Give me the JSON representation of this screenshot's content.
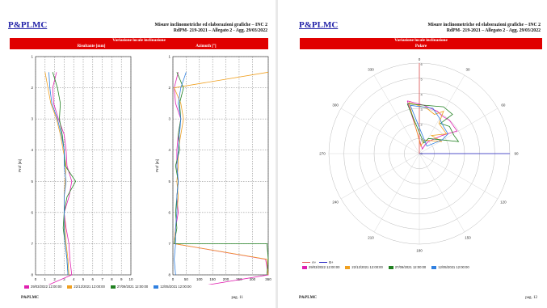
{
  "left_page": {
    "logo": "P&PLMC",
    "header_line1": "Misure inclinometriche ed elaborazioni grafiche – INC 2",
    "header_line2": "RdPM- 219-2021 – Allegato 2 - Agg. 29/03/2022",
    "section_title": "Variazione locale inclinazione",
    "subtitle_left": "Risultante [mm]",
    "subtitle_right": "Azimuth [°]",
    "footer_logo": "P&PLMC",
    "page_number": "pag. 11"
  },
  "right_page": {
    "logo": "P&PLMC",
    "header_line1": "Misure inclinometriche ed elaborazioni grafiche – INC 2",
    "header_line2": "RdPM- 219-2021 – Allegato 2 - Agg. 29/03/2022",
    "section_title": "Variazione locale inclinazione",
    "section_subtitle": "Polare",
    "footer_logo": "P&PLMC",
    "page_number": "pag. 12",
    "axis_legend_a": "A+",
    "axis_legend_b": "B+"
  },
  "legend": [
    {
      "label": "29/03/2022 12:00:00",
      "color": "#e020b0"
    },
    {
      "label": "22/12/2021 12:00:00",
      "color": "#f0a020"
    },
    {
      "label": "27/09/2021 12:00:00",
      "color": "#208020"
    },
    {
      "label": "12/05/2021 12:00:00",
      "color": "#3080e0"
    }
  ],
  "chart_data": [
    {
      "type": "line",
      "title": "Risultante [mm]",
      "xlabel": "",
      "ylabel": "Prof [m]",
      "xlim": [
        0,
        10
      ],
      "ylim": [
        1,
        8
      ],
      "x_ticks": [
        0,
        1,
        2,
        3,
        4,
        5,
        6,
        7,
        8,
        9,
        10
      ],
      "y_ticks": [
        1,
        2,
        3,
        4,
        5,
        6,
        7,
        8
      ],
      "grid": true,
      "series": [
        {
          "name": "29/03/2022 12:00:00",
          "color": "#e020b0",
          "points": [
            [
              2.2,
              1.5
            ],
            [
              1.8,
              2
            ],
            [
              1.9,
              2.5
            ],
            [
              2.4,
              3
            ],
            [
              3,
              3.5
            ],
            [
              3.2,
              4
            ],
            [
              3.3,
              4.5
            ],
            [
              3.8,
              5
            ],
            [
              3.5,
              5.5
            ],
            [
              3,
              6
            ],
            [
              3.2,
              6.5
            ],
            [
              3.5,
              7
            ],
            [
              3.6,
              7.5
            ],
            [
              3.8,
              8
            ],
            [
              0,
              8.5
            ]
          ]
        },
        {
          "name": "22/12/2021 12:00:00",
          "color": "#f0a020",
          "points": [
            [
              1,
              1.5
            ],
            [
              1.3,
              2
            ],
            [
              1.6,
              2.5
            ],
            [
              2.2,
              3
            ],
            [
              2.6,
              3.5
            ],
            [
              2.9,
              4
            ],
            [
              3.2,
              4.5
            ],
            [
              3.1,
              5
            ],
            [
              3,
              5.5
            ],
            [
              3,
              6
            ],
            [
              3.1,
              6.5
            ],
            [
              3.2,
              7
            ],
            [
              3.4,
              7.5
            ],
            [
              3.5,
              8
            ]
          ]
        },
        {
          "name": "27/09/2021 12:00:00",
          "color": "#208020",
          "points": [
            [
              1.8,
              1.5
            ],
            [
              2.3,
              2
            ],
            [
              2.6,
              2.5
            ],
            [
              2.5,
              3
            ],
            [
              2.8,
              3.5
            ],
            [
              3,
              4
            ],
            [
              3.1,
              4.5
            ],
            [
              4.2,
              5
            ],
            [
              3.3,
              5.5
            ],
            [
              3,
              6
            ],
            [
              2.9,
              6.5
            ],
            [
              3.1,
              7
            ],
            [
              3.3,
              7.5
            ],
            [
              3.4,
              8
            ]
          ]
        },
        {
          "name": "12/05/2021 12:00:00",
          "color": "#3080e0",
          "points": [
            [
              1.4,
              1.5
            ],
            [
              1.5,
              2
            ],
            [
              1.7,
              2.5
            ],
            [
              2.3,
              3
            ],
            [
              2.7,
              3.5
            ],
            [
              3,
              4
            ],
            [
              3,
              4.5
            ],
            [
              3.2,
              5
            ],
            [
              3,
              5.5
            ],
            [
              3,
              6
            ],
            [
              3,
              6.5
            ],
            [
              3.1,
              7
            ],
            [
              3.3,
              7.5
            ],
            [
              3.4,
              8
            ]
          ]
        }
      ]
    },
    {
      "type": "line",
      "title": "Azimuth [°]",
      "xlabel": "",
      "ylabel": "Prof [m]",
      "xlim": [
        0,
        360
      ],
      "ylim": [
        1,
        8
      ],
      "x_ticks": [
        0,
        50,
        100,
        150,
        200,
        250,
        300,
        360
      ],
      "y_ticks": [
        1,
        2,
        3,
        4,
        5,
        6,
        7,
        8
      ],
      "grid": true,
      "series": [
        {
          "name": "29/03/2022 12:00:00",
          "color": "#e020b0",
          "points": [
            [
              20,
              1.5
            ],
            [
              5,
              2
            ],
            [
              10,
              2.5
            ],
            [
              30,
              3
            ],
            [
              20,
              3.5
            ],
            [
              15,
              4
            ],
            [
              15,
              4.5
            ],
            [
              20,
              5
            ],
            [
              15,
              5.5
            ],
            [
              20,
              6
            ],
            [
              10,
              6.5
            ],
            [
              5,
              7
            ],
            [
              350,
              7.5
            ],
            [
              360,
              8
            ],
            [
              5,
              8.5
            ]
          ]
        },
        {
          "name": "22/12/2021 12:00:00",
          "color": "#f0a020",
          "points": [
            [
              360,
              1.5
            ],
            [
              5,
              2
            ],
            [
              30,
              2.5
            ],
            [
              40,
              3
            ],
            [
              30,
              3.5
            ],
            [
              20,
              4
            ],
            [
              20,
              4.5
            ],
            [
              15,
              5
            ],
            [
              20,
              5.5
            ],
            [
              15,
              6
            ],
            [
              10,
              6.5
            ],
            [
              5,
              7
            ],
            [
              355,
              7.5
            ],
            [
              360,
              8
            ]
          ]
        },
        {
          "name": "27/09/2021 12:00:00",
          "color": "#208020",
          "points": [
            [
              15,
              1.5
            ],
            [
              40,
              2
            ],
            [
              25,
              2.5
            ],
            [
              30,
              3
            ],
            [
              20,
              3.5
            ],
            [
              25,
              4
            ],
            [
              10,
              4.5
            ],
            [
              20,
              5
            ],
            [
              15,
              5.5
            ],
            [
              10,
              6
            ],
            [
              15,
              6.5
            ],
            [
              5,
              7
            ],
            [
              355,
              7
            ],
            [
              360,
              7.5
            ],
            [
              355,
              8
            ]
          ]
        },
        {
          "name": "12/05/2021 12:00:00",
          "color": "#3080e0",
          "points": [
            [
              50,
              1.5
            ],
            [
              30,
              2
            ],
            [
              20,
              2.5
            ],
            [
              30,
              3
            ],
            [
              25,
              3.5
            ],
            [
              20,
              4
            ],
            [
              15,
              4.5
            ],
            [
              20,
              5
            ],
            [
              15,
              5.5
            ],
            [
              15,
              6
            ],
            [
              10,
              6.5
            ],
            [
              10,
              7
            ],
            [
              5,
              7.5
            ],
            [
              10,
              8
            ]
          ]
        }
      ]
    },
    {
      "type": "polar",
      "title": "Polare",
      "angle_ticks": [
        "0",
        "30",
        "60",
        "90",
        "120",
        "150",
        "180",
        "210",
        "240",
        "270",
        "300",
        "330"
      ],
      "radial_ticks": [
        0,
        1,
        2,
        3,
        4,
        5,
        6
      ],
      "rlim": [
        0,
        6
      ],
      "series": [
        {
          "name": "29/03/2022 12:00:00",
          "color": "#e020b0",
          "points_xy": [
            [
              -0.8,
              3.5
            ],
            [
              0.3,
              3.2
            ],
            [
              1.2,
              2.8
            ],
            [
              1.5,
              2.5
            ],
            [
              2,
              2.2
            ],
            [
              2.5,
              1.5
            ],
            [
              1.5,
              1.2
            ],
            [
              0.6,
              0.8
            ],
            [
              0.4,
              0.6
            ],
            [
              0.2,
              0.3
            ],
            [
              -0.8,
              3.5
            ]
          ]
        },
        {
          "name": "22/12/2021 12:00:00",
          "color": "#f0a020",
          "points_xy": [
            [
              -0.7,
              3.4
            ],
            [
              0.5,
              3
            ],
            [
              1,
              2.6
            ],
            [
              1.6,
              2.8
            ],
            [
              1.3,
              2
            ],
            [
              1.8,
              1.3
            ],
            [
              0.8,
              1.2
            ],
            [
              1.5,
              0.8
            ],
            [
              0.3,
              0.9
            ],
            [
              0.1,
              0.5
            ],
            [
              -0.7,
              3.4
            ]
          ]
        },
        {
          "name": "27/09/2021 12:00:00",
          "color": "#208020",
          "points_xy": [
            [
              -0.8,
              3.3
            ],
            [
              1.6,
              3.1
            ],
            [
              2.2,
              2.6
            ],
            [
              1.4,
              2
            ],
            [
              2,
              1.8
            ],
            [
              2.3,
              1.2
            ],
            [
              2.6,
              0.8
            ],
            [
              0.6,
              1
            ],
            [
              0.3,
              0.7
            ],
            [
              -0.8,
              3.3
            ]
          ]
        },
        {
          "name": "12/05/2021 12:00:00",
          "color": "#3080e0",
          "points_xy": [
            [
              -0.6,
              3.2
            ],
            [
              0.9,
              3
            ],
            [
              1.3,
              2.4
            ],
            [
              1.6,
              1.8
            ],
            [
              1.9,
              1.3
            ],
            [
              1.5,
              0.9
            ],
            [
              0.5,
              0.5
            ],
            [
              -0.6,
              3.2
            ]
          ]
        }
      ],
      "extra_lines": [
        {
          "name": "B+",
          "color": "#2020c0",
          "points_xy": [
            [
              0,
              0
            ],
            [
              6,
              0
            ]
          ]
        },
        {
          "name": "A+",
          "color": "#e05050",
          "points_xy": [
            [
              0,
              0
            ],
            [
              0,
              6
            ]
          ]
        }
      ]
    }
  ]
}
